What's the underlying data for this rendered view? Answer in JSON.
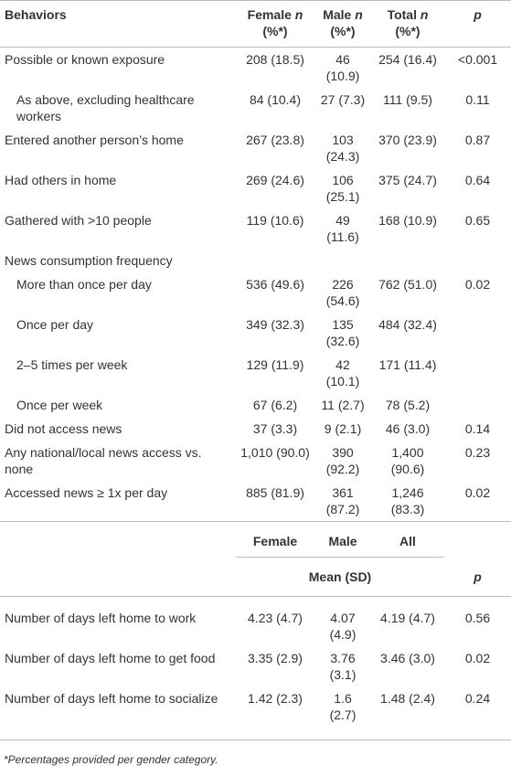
{
  "table": {
    "columns": [
      [
        {
          "text": "Behaviors"
        }
      ],
      [
        {
          "text": "Female"
        },
        {
          "text": "n",
          "italic": true
        },
        {
          "text": "(%*)"
        }
      ],
      [
        {
          "text": "Male"
        },
        {
          "text": "n",
          "italic": true
        },
        {
          "text": "(%*)"
        }
      ],
      [
        {
          "text": "Total"
        },
        {
          "text": "n",
          "italic": true
        },
        {
          "text": "(%*)"
        }
      ],
      [
        {
          "text": "p",
          "italic": true
        }
      ]
    ],
    "rows": [
      {
        "label": "Possible or known exposure",
        "indent": false,
        "cells": [
          "208 (18.5)",
          "46 (10.9)",
          "254 (16.4)",
          "<0.001"
        ]
      },
      {
        "label": "As above, excluding healthcare workers",
        "indent": true,
        "cells": [
          "84 (10.4)",
          "27 (7.3)",
          "111 (9.5)",
          "0.11"
        ]
      },
      {
        "label": "Entered another person’s home",
        "indent": false,
        "cells": [
          "267 (23.8)",
          "103 (24.3)",
          "370 (23.9)",
          "0.87"
        ]
      },
      {
        "label": "Had others in home",
        "indent": false,
        "cells": [
          "269 (24.6)",
          "106 (25.1)",
          "375 (24.7)",
          "0.64"
        ]
      },
      {
        "label": "Gathered with >10 people",
        "indent": false,
        "cells": [
          "119 (10.6)",
          "49 (11.6)",
          "168 (10.9)",
          "0.65"
        ]
      },
      {
        "label": "News consumption frequency",
        "indent": false,
        "cells": [
          null,
          null,
          null,
          null
        ]
      },
      {
        "label": "More than once per day",
        "indent": true,
        "cells": [
          "536 (49.6)",
          "226 (54.6)",
          "762 (51.0)",
          "0.02"
        ]
      },
      {
        "label": "Once per day",
        "indent": true,
        "cells": [
          "349 (32.3)",
          "135 (32.6)",
          "484 (32.4)",
          null
        ]
      },
      {
        "label": "2–5 times per week",
        "indent": true,
        "cells": [
          "129 (11.9)",
          "42 (10.1)",
          "171 (11.4)",
          null
        ]
      },
      {
        "label": "Once per week",
        "indent": true,
        "cells": [
          "67 (6.2)",
          "11 (2.7)",
          "78 (5.2)",
          null
        ]
      },
      {
        "label": "Did not access news",
        "indent": false,
        "cells": [
          "37 (3.3)",
          "9 (2.1)",
          "46 (3.0)",
          "0.14"
        ]
      },
      {
        "label": "Any national/local news access vs. none",
        "indent": false,
        "cells": [
          "1,010 (90.0)",
          "390 (92.2)",
          "1,400 (90.6)",
          "0.23"
        ]
      },
      {
        "label": "Accessed news ≥ 1x per day",
        "indent": false,
        "cells": [
          "885 (81.9)",
          "361 (87.2)",
          "1,246 (83.3)",
          "0.02"
        ]
      }
    ],
    "mean_columns": [
      "Female",
      "Male",
      "All"
    ],
    "mean_label": "Mean (SD)",
    "mean_p": "p",
    "mean_rows": [
      {
        "label": "Number of days left home to work",
        "cells": [
          "4.23 (4.7)",
          "4.07 (4.9)",
          "4.19 (4.7)",
          "0.56"
        ]
      },
      {
        "label": "Number of days left home to get food",
        "cells": [
          "3.35 (2.9)",
          "3.76 (3.1)",
          "3.46 (3.0)",
          "0.02"
        ]
      },
      {
        "label": "Number of days left home to socialize",
        "cells": [
          "1.42 (2.3)",
          "1.6 (2.7)",
          "1.48 (2.4)",
          "0.24"
        ]
      }
    ]
  },
  "footnote": "*Percentages provided per gender category."
}
